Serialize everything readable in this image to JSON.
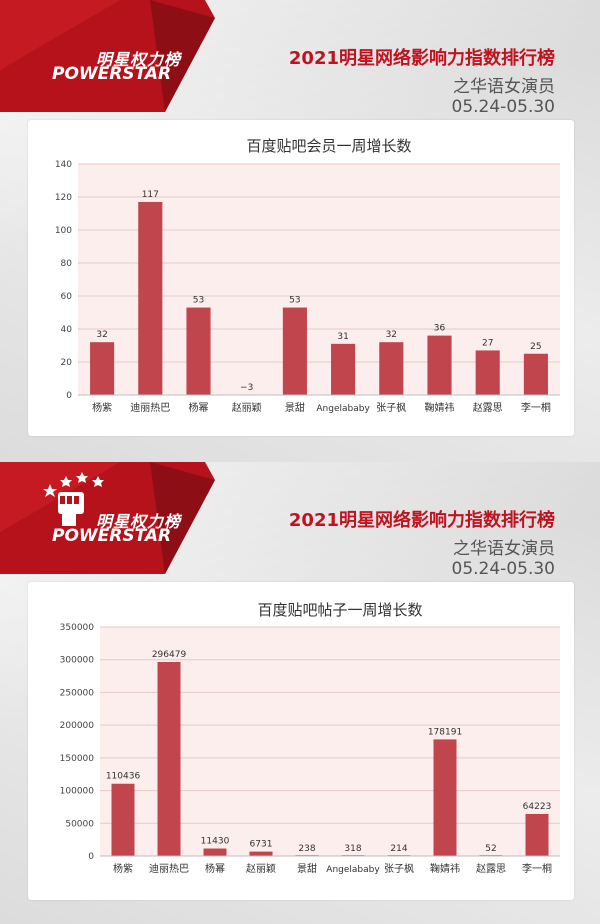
{
  "panels": [
    {
      "logo": {
        "cn": "明星权力榜",
        "en": "POWERSTAR"
      },
      "header": {
        "title": "2021明星网络影响力指数排行榜",
        "subtitle": "之华语女演员",
        "date": "05.24-05.30"
      }
    },
    {
      "logo": {
        "cn": "明星权力榜",
        "en": "POWERSTAR"
      },
      "header": {
        "title": "2021明星网络影响力指数排行榜",
        "subtitle": "之华语女演员",
        "date": "05.24-05.30"
      }
    }
  ],
  "colors": {
    "brand_red": "#c1121f",
    "bar": "#c0454c",
    "plot_bg": "#fbeeed"
  },
  "chart_data": [
    {
      "type": "bar",
      "title": "百度贴吧会员一周增长数",
      "categories": [
        "杨紫",
        "迪丽热巴",
        "杨幂",
        "赵丽颖",
        "景甜",
        "Angelababy",
        "张子枫",
        "鞠婧祎",
        "赵露思",
        "李一桐"
      ],
      "values": [
        32,
        117,
        53,
        -3,
        53,
        31,
        32,
        36,
        27,
        25
      ],
      "value_labels": [
        "32",
        "117",
        "53",
        "−3",
        "53",
        "31",
        "32",
        "36",
        "27",
        "25"
      ],
      "ylim": [
        0,
        140
      ],
      "yticks": [
        0,
        20,
        40,
        60,
        80,
        100,
        120,
        140
      ],
      "ytick_labels": [
        "0",
        "20",
        "40",
        "60",
        "80",
        "100",
        "120",
        "140"
      ],
      "grid": true
    },
    {
      "type": "bar",
      "title": "百度贴吧帖子一周增长数",
      "categories": [
        "杨紫",
        "迪丽热巴",
        "杨幂",
        "赵丽颖",
        "景甜",
        "Angelababy",
        "张子枫",
        "鞠婧祎",
        "赵露思",
        "李一桐"
      ],
      "values": [
        110436,
        296479,
        11430,
        6731,
        238,
        318,
        214,
        178191,
        52,
        64223
      ],
      "value_labels": [
        "110436",
        "296479",
        "11430",
        "6731",
        "238",
        "318",
        "214",
        "178191",
        "52",
        "64223"
      ],
      "ylim": [
        0,
        350000
      ],
      "yticks": [
        0,
        50000,
        100000,
        150000,
        200000,
        250000,
        300000,
        350000
      ],
      "ytick_labels": [
        "0",
        "50000",
        "100000",
        "150000",
        "200000",
        "250000",
        "300000",
        "350000"
      ],
      "grid": true
    }
  ]
}
